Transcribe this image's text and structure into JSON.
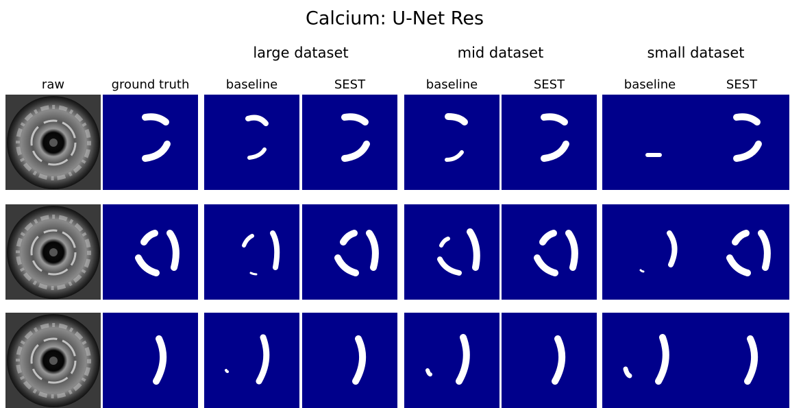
{
  "title": "Calcium: U-Net Res",
  "groups": [
    "large dataset",
    "mid dataset",
    "small dataset"
  ],
  "columns": [
    "raw",
    "ground truth",
    "baseline",
    "SEST",
    "baseline",
    "SEST",
    "baseline",
    "SEST"
  ]
}
